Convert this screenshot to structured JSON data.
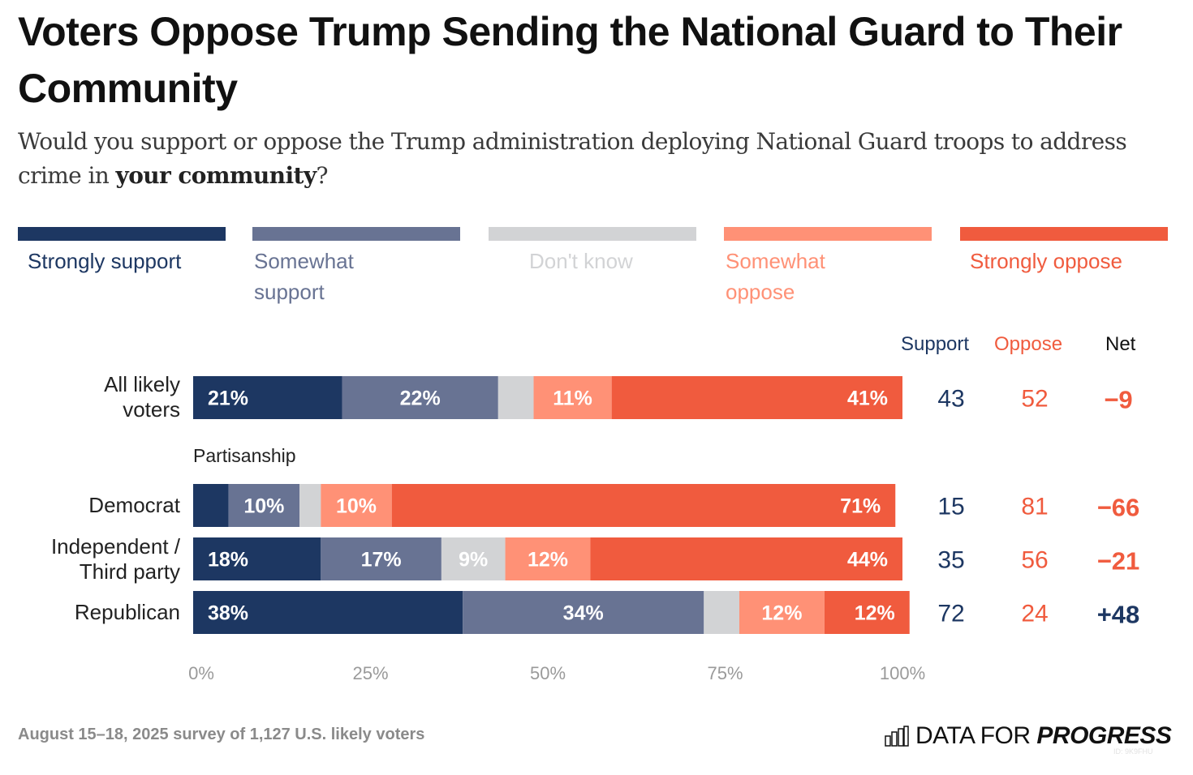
{
  "title": "Voters Oppose Trump Sending the National Guard to Their Community",
  "subtitle": {
    "prefix": "Would you support or oppose the Trump administration deploying National Guard troops to address crime in ",
    "emphasis": "your community",
    "suffix": "?"
  },
  "colors": {
    "strongly_support": "#1d3762",
    "somewhat_support": "#687393",
    "dont_know": "#d2d3d5",
    "somewhat_oppose": "#ff9176",
    "strongly_oppose": "#f05b3e",
    "support_text": "#1d3762",
    "oppose_text": "#f05b3e",
    "axis_text": "#9a9a9a"
  },
  "legend": [
    {
      "key": "strongly_support",
      "label": "Strongly support"
    },
    {
      "key": "somewhat_support",
      "label": "Somewhat support"
    },
    {
      "key": "dont_know",
      "label": "Don't know"
    },
    {
      "key": "somewhat_oppose",
      "label": "Somewhat oppose"
    },
    {
      "key": "strongly_oppose",
      "label": "Strongly oppose"
    }
  ],
  "columns": {
    "support": "Support",
    "oppose": "Oppose",
    "net": "Net"
  },
  "group_label": "Partisanship",
  "chart_data": {
    "type": "bar",
    "orientation": "horizontal-stacked",
    "title": "Voters Oppose Trump Sending the National Guard to Their Community",
    "xlabel": "",
    "ylabel": "",
    "xlim": [
      0,
      100
    ],
    "x_ticks": [
      "0%",
      "25%",
      "50%",
      "75%",
      "100%"
    ],
    "grid": false,
    "legend_position": "top",
    "series_keys": [
      "strongly_support",
      "somewhat_support",
      "dont_know",
      "somewhat_oppose",
      "strongly_oppose"
    ],
    "series_names": [
      "Strongly support",
      "Somewhat support",
      "Don't know",
      "Somewhat oppose",
      "Strongly oppose"
    ],
    "categories": [
      "All likely voters",
      "Democrat",
      "Independent / Third party",
      "Republican"
    ],
    "rows": [
      {
        "label": "All likely voters",
        "values": [
          21,
          22,
          5,
          11,
          41
        ],
        "labels": [
          "21%",
          "22%",
          "",
          "11%",
          "41%"
        ],
        "support": "43",
        "oppose": "52",
        "net": "−9",
        "net_sign": "neg"
      },
      {
        "label": "Democrat",
        "values": [
          5,
          10,
          3,
          10,
          71
        ],
        "labels": [
          "",
          "10%",
          "",
          "10%",
          "71%"
        ],
        "support": "15",
        "oppose": "81",
        "net": "−66",
        "net_sign": "neg"
      },
      {
        "label": "Independent / Third party",
        "values": [
          18,
          17,
          9,
          12,
          44
        ],
        "labels": [
          "18%",
          "17%",
          "9%",
          "12%",
          "44%"
        ],
        "support": "35",
        "oppose": "56",
        "net": "−21",
        "net_sign": "neg"
      },
      {
        "label": "Republican",
        "values": [
          38,
          34,
          5,
          12,
          12
        ],
        "labels": [
          "38%",
          "34%",
          "",
          "12%",
          "12%"
        ],
        "support": "72",
        "oppose": "24",
        "net": "+48",
        "net_sign": "pos"
      }
    ]
  },
  "row_labels": [
    [
      "All likely",
      "voters"
    ],
    [
      "Democrat"
    ],
    [
      "Independent /",
      "Third party"
    ],
    [
      "Republican"
    ]
  ],
  "footer": {
    "note": "August 15–18, 2025 survey of 1,127 U.S. likely voters",
    "logo_light": "DATA FOR ",
    "logo_bold": "PROGRESS",
    "logo_id": "ID: 9K9FHU"
  }
}
